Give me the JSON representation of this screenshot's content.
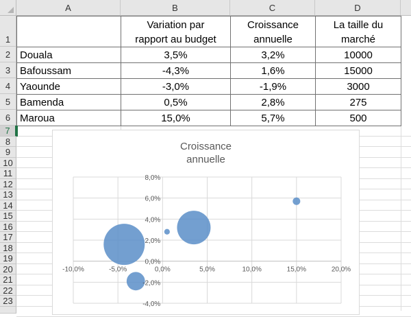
{
  "columns": [
    "A",
    "B",
    "C",
    "D"
  ],
  "rows": [
    "1",
    "2",
    "3",
    "4",
    "5",
    "6",
    "7",
    "8",
    "9",
    "10",
    "11",
    "12",
    "13",
    "14",
    "15",
    "16",
    "17",
    "18",
    "19",
    "20",
    "21",
    "22",
    "23"
  ],
  "selected_row": "7",
  "table": {
    "headers": {
      "a": "",
      "b_line1": "Variation par",
      "b_line2": "rapport au budget",
      "c_line1": "Croissance",
      "c_line2": "annuelle",
      "d_line1": "La taille du",
      "d_line2": "marché"
    },
    "data": [
      {
        "city": "Douala",
        "variation": "3,5%",
        "croissance": "3,2%",
        "taille": "10000"
      },
      {
        "city": "Bafoussam",
        "variation": "-4,3%",
        "croissance": "1,6%",
        "taille": "15000"
      },
      {
        "city": "Yaounde",
        "variation": "-3,0%",
        "croissance": "-1,9%",
        "taille": "3000"
      },
      {
        "city": "Bamenda",
        "variation": "0,5%",
        "croissance": "2,8%",
        "taille": "275"
      },
      {
        "city": "Maroua",
        "variation": "15,0%",
        "croissance": "5,7%",
        "taille": "500"
      }
    ]
  },
  "chart": {
    "title_line1": "Croissance",
    "title_line2": "annuelle",
    "x_ticks": [
      "-10,0%",
      "-5,0%",
      "0,0%",
      "5,0%",
      "10,0%",
      "15,0%",
      "20,0%"
    ],
    "y_ticks": [
      "8,0%",
      "6,0%",
      "4,0%",
      "2,0%",
      "0,0%",
      "-2,0%",
      "-4,0%"
    ],
    "bubble_color": "#5b8ec8"
  },
  "chart_data": {
    "type": "scatter",
    "subtype": "bubble",
    "title": "Croissance annuelle",
    "xlabel": "Variation par rapport au budget",
    "ylabel": "Croissance annuelle",
    "xlim": [
      -10,
      20
    ],
    "ylim": [
      -4,
      8
    ],
    "grid": true,
    "legend": "none",
    "series": [
      {
        "name": "Croissance annuelle",
        "points": [
          {
            "label": "Douala",
            "x": 3.5,
            "y": 3.2,
            "size": 10000
          },
          {
            "label": "Bafoussam",
            "x": -4.3,
            "y": 1.6,
            "size": 15000
          },
          {
            "label": "Yaounde",
            "x": -3.0,
            "y": -1.9,
            "size": 3000
          },
          {
            "label": "Bamenda",
            "x": 0.5,
            "y": 2.8,
            "size": 275
          },
          {
            "label": "Maroua",
            "x": 15.0,
            "y": 5.7,
            "size": 500
          }
        ]
      }
    ]
  }
}
